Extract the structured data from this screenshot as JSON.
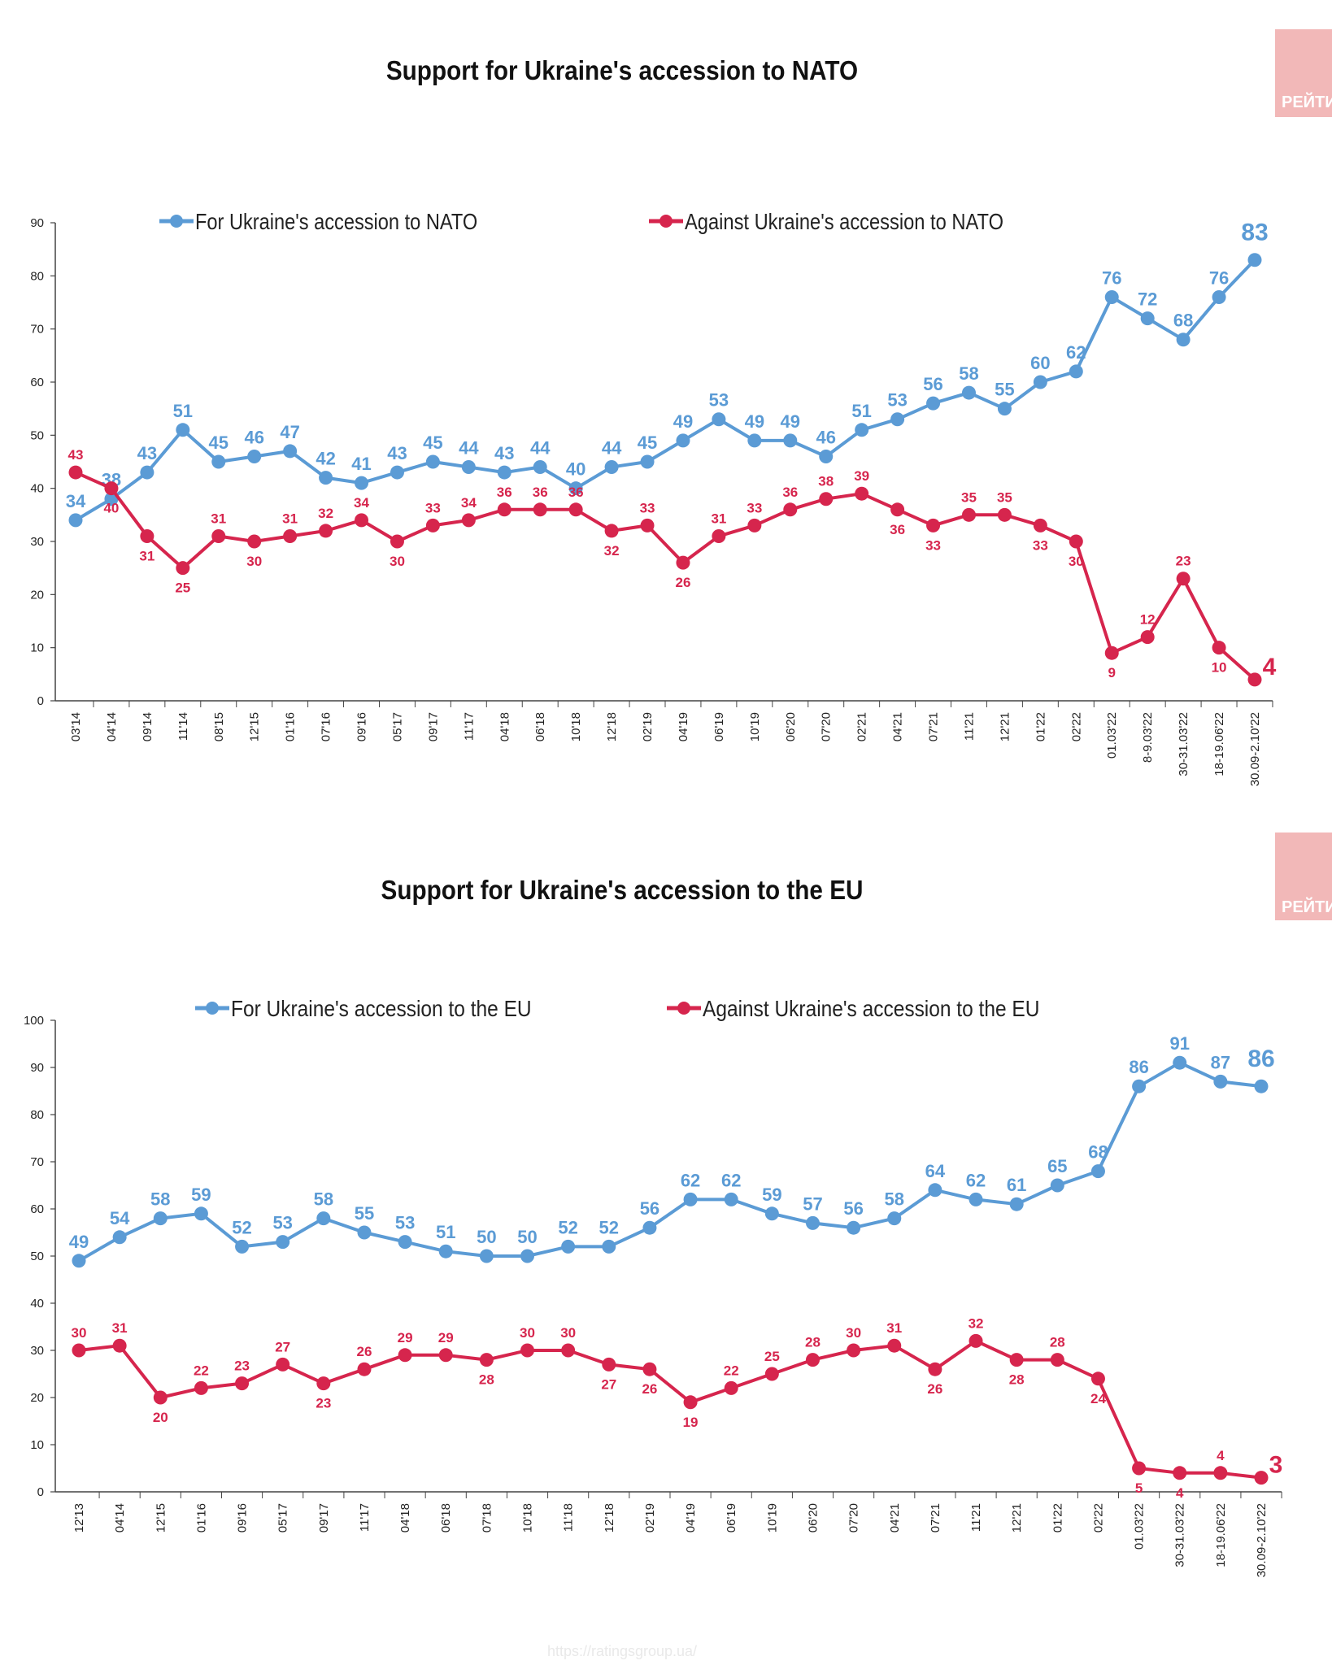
{
  "brand": {
    "tab_text": "РЕЙТИНГ"
  },
  "footer": {
    "url": "https://ratingsgroup.ua/"
  },
  "chart_data": [
    {
      "type": "line",
      "title": "Support for Ukraine's accession to NATO",
      "ylim": [
        0,
        90
      ],
      "yticks": [
        0,
        10,
        20,
        30,
        40,
        50,
        60,
        70,
        80,
        90
      ],
      "grid": false,
      "legend_position": "top",
      "categories": [
        "03'14",
        "04'14",
        "09'14",
        "11'14",
        "08'15",
        "12'15",
        "01'16",
        "07'16",
        "09'16",
        "05'17",
        "09'17",
        "11'17",
        "04'18",
        "06'18",
        "10'18",
        "12'18",
        "02'19",
        "04'19",
        "06'19",
        "10'19",
        "06'20",
        "07'20",
        "02'21",
        "04'21",
        "07'21",
        "11'21",
        "12'21",
        "01'22",
        "02'22",
        "01.03'22",
        "8-9.03'22",
        "30-31.03'22",
        "18-19.06'22",
        "30.09-2.10'22"
      ],
      "series": [
        {
          "name": "For Ukraine's accession to NATO",
          "color": "#5b9bd5",
          "values": [
            34,
            38,
            43,
            51,
            45,
            46,
            47,
            42,
            41,
            43,
            45,
            44,
            43,
            44,
            40,
            44,
            45,
            49,
            53,
            49,
            49,
            46,
            51,
            53,
            56,
            58,
            55,
            60,
            62,
            76,
            72,
            68,
            76,
            83
          ]
        },
        {
          "name": "Against Ukraine's accession to NATO",
          "color": "#d6254d",
          "values": [
            43,
            40,
            31,
            25,
            31,
            30,
            31,
            32,
            34,
            30,
            33,
            34,
            36,
            36,
            36,
            32,
            33,
            26,
            31,
            33,
            36,
            38,
            39,
            36,
            33,
            35,
            35,
            33,
            30,
            9,
            12,
            23,
            10,
            4
          ]
        }
      ]
    },
    {
      "type": "line",
      "title": "Support for Ukraine's accession to the EU",
      "ylim": [
        0,
        100
      ],
      "yticks": [
        0,
        10,
        20,
        30,
        40,
        50,
        60,
        70,
        80,
        90,
        100
      ],
      "grid": false,
      "legend_position": "top",
      "categories": [
        "12'13",
        "04'14",
        "12'15",
        "01'16",
        "09'16",
        "05'17",
        "09'17",
        "11'17",
        "04'18",
        "06'18",
        "07'18",
        "10'18",
        "11'18",
        "12'18",
        "02'19",
        "04'19",
        "06'19",
        "10'19",
        "06'20",
        "07'20",
        "04'21",
        "07'21",
        "11'21",
        "12'21",
        "01'22",
        "02'22",
        "01.03'22",
        "30-31.03'22",
        "18-19.06'22",
        "30.09-2.10'22"
      ],
      "series": [
        {
          "name": "For Ukraine's accession to the EU",
          "color": "#5b9bd5",
          "values": [
            49,
            54,
            58,
            59,
            52,
            53,
            58,
            55,
            53,
            51,
            50,
            50,
            52,
            52,
            56,
            62,
            62,
            59,
            57,
            56,
            58,
            64,
            62,
            61,
            65,
            68,
            86,
            91,
            87,
            86
          ]
        },
        {
          "name": "Against Ukraine's accession to the EU",
          "color": "#d6254d",
          "values": [
            30,
            31,
            20,
            22,
            23,
            27,
            23,
            26,
            29,
            29,
            28,
            30,
            30,
            27,
            26,
            19,
            22,
            25,
            28,
            30,
            31,
            26,
            32,
            28,
            28,
            24,
            5,
            4,
            4,
            3
          ]
        }
      ]
    }
  ]
}
